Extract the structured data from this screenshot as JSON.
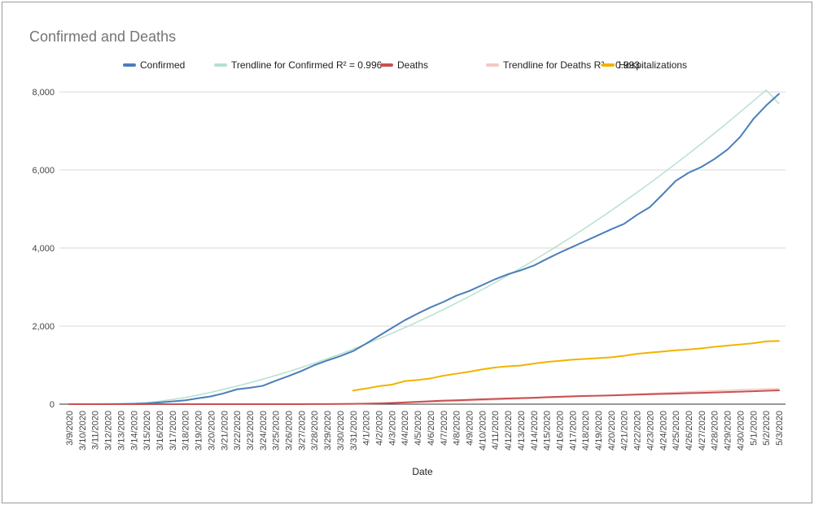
{
  "chart_data": {
    "type": "line",
    "title": "Confirmed and Deaths",
    "xlabel": "Date",
    "ylabel": "",
    "ylim": [
      0,
      8000
    ],
    "yticks": [
      "0",
      "2,000",
      "4,000",
      "6,000",
      "8,000"
    ],
    "grid": true,
    "legend_position": "top",
    "x": [
      "3/9/2020",
      "3/10/2020",
      "3/11/2020",
      "3/12/2020",
      "3/13/2020",
      "3/14/2020",
      "3/15/2020",
      "3/16/2020",
      "3/17/2020",
      "3/18/2020",
      "3/19/2020",
      "3/20/2020",
      "3/21/2020",
      "3/22/2020",
      "3/23/2020",
      "3/24/2020",
      "3/25/2020",
      "3/26/2020",
      "3/27/2020",
      "3/28/2020",
      "3/29/2020",
      "3/30/2020",
      "3/31/2020",
      "4/1/2020",
      "4/2/2020",
      "4/3/2020",
      "4/4/2020",
      "4/5/2020",
      "4/6/2020",
      "4/7/2020",
      "4/8/2020",
      "4/9/2020",
      "4/10/2020",
      "4/11/2020",
      "4/12/2020",
      "4/13/2020",
      "4/14/2020",
      "4/15/2020",
      "4/16/2020",
      "4/17/2020",
      "4/18/2020",
      "4/19/2020",
      "4/20/2020",
      "4/21/2020",
      "4/22/2020",
      "4/23/2020",
      "4/24/2020",
      "4/25/2020",
      "4/26/2020",
      "4/27/2020",
      "4/28/2020",
      "4/29/2020",
      "4/30/2020",
      "5/1/2020",
      "5/2/2020",
      "5/3/2020"
    ],
    "series": [
      {
        "name": "Confirmed",
        "color": "#4a7ebb",
        "width": 2,
        "values": [
          0,
          0,
          0,
          2,
          5,
          10,
          20,
          45,
          70,
          100,
          150,
          200,
          280,
          380,
          420,
          470,
          600,
          720,
          850,
          1000,
          1120,
          1230,
          1360,
          1550,
          1750,
          1950,
          2150,
          2320,
          2480,
          2620,
          2780,
          2900,
          3050,
          3200,
          3330,
          3430,
          3550,
          3720,
          3880,
          4030,
          4180,
          4330,
          4480,
          4620,
          4850,
          5050,
          5380,
          5720,
          5930,
          6080,
          6280,
          6520,
          6850,
          7300,
          7650,
          7950
        ]
      },
      {
        "name": "Trendline for Confirmed R² = 0.996",
        "color": "#b7e1cd",
        "width": 1.5,
        "values": [
          0,
          0,
          0,
          0,
          5,
          15,
          40,
          75,
          120,
          170,
          235,
          305,
          385,
          465,
          550,
          640,
          735,
          835,
          940,
          1050,
          1165,
          1285,
          1410,
          1540,
          1675,
          1815,
          1960,
          2110,
          2265,
          2425,
          2590,
          2760,
          2935,
          3115,
          3300,
          3490,
          3685,
          3885,
          4090,
          4300,
          4515,
          4735,
          4960,
          5190,
          5425,
          5665,
          5910,
          6160,
          6415,
          6675,
          6940,
          7210,
          7485,
          7765,
          8045,
          7700
        ]
      },
      {
        "name": "Deaths",
        "color": "#c85050",
        "width": 2,
        "values": [
          0,
          0,
          0,
          0,
          0,
          0,
          0,
          0,
          0,
          0,
          0,
          0,
          0,
          0,
          0,
          0,
          0,
          1,
          1,
          2,
          3,
          4,
          8,
          14,
          22,
          30,
          45,
          60,
          75,
          90,
          100,
          112,
          125,
          135,
          145,
          155,
          165,
          180,
          190,
          200,
          210,
          215,
          225,
          235,
          245,
          255,
          262,
          270,
          280,
          290,
          300,
          310,
          320,
          330,
          345,
          355
        ]
      },
      {
        "name": "Trendline for Deaths R² = 0.993",
        "color": "#f4c7c3",
        "width": 1.5,
        "values": [
          0,
          0,
          0,
          0,
          0,
          0,
          0,
          0,
          0,
          0,
          0,
          0,
          0,
          0,
          0,
          0,
          0,
          0,
          1,
          2,
          4,
          7,
          11,
          16,
          22,
          29,
          37,
          46,
          56,
          66,
          77,
          88,
          100,
          112,
          124,
          137,
          150,
          163,
          177,
          190,
          204,
          218,
          232,
          246,
          260,
          274,
          288,
          302,
          316,
          330,
          343,
          356,
          369,
          380,
          390,
          398
        ]
      },
      {
        "name": "Hospitalizations",
        "color": "#f1b300",
        "width": 2,
        "values": [
          null,
          null,
          null,
          null,
          null,
          null,
          null,
          null,
          null,
          null,
          null,
          null,
          null,
          null,
          null,
          null,
          null,
          null,
          null,
          null,
          null,
          null,
          350,
          400,
          460,
          500,
          590,
          620,
          660,
          730,
          780,
          830,
          890,
          940,
          970,
          990,
          1040,
          1080,
          1110,
          1140,
          1160,
          1180,
          1200,
          1240,
          1290,
          1320,
          1350,
          1380,
          1400,
          1430,
          1470,
          1500,
          1530,
          1560,
          1610,
          1620
        ]
      }
    ]
  }
}
